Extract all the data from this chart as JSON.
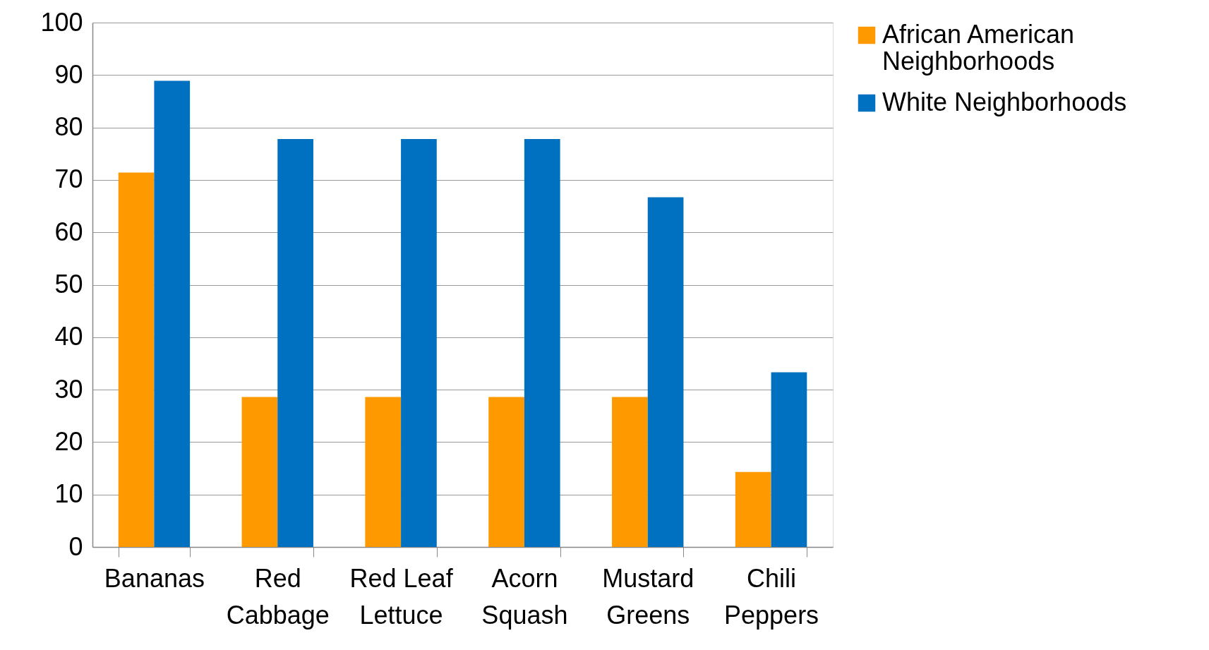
{
  "chart_data": {
    "type": "bar",
    "categories": [
      "Bananas",
      "Red Cabbage",
      "Red Leaf Lettuce",
      "Acorn Squash",
      "Mustard Greens",
      "Chili Peppers"
    ],
    "series": [
      {
        "name": "African American Neighborhoods",
        "color": "#ff9900",
        "values": [
          71.4,
          28.6,
          28.6,
          28.6,
          28.6,
          14.3
        ]
      },
      {
        "name": "White Neighborhoods",
        "color": "#0070c0",
        "values": [
          88.9,
          77.8,
          77.8,
          77.8,
          66.7,
          33.3
        ]
      }
    ],
    "ylim": [
      0,
      100
    ],
    "yticks": [
      0,
      10,
      20,
      30,
      40,
      50,
      60,
      70,
      80,
      90,
      100
    ],
    "grid": "y",
    "legend": "right"
  }
}
